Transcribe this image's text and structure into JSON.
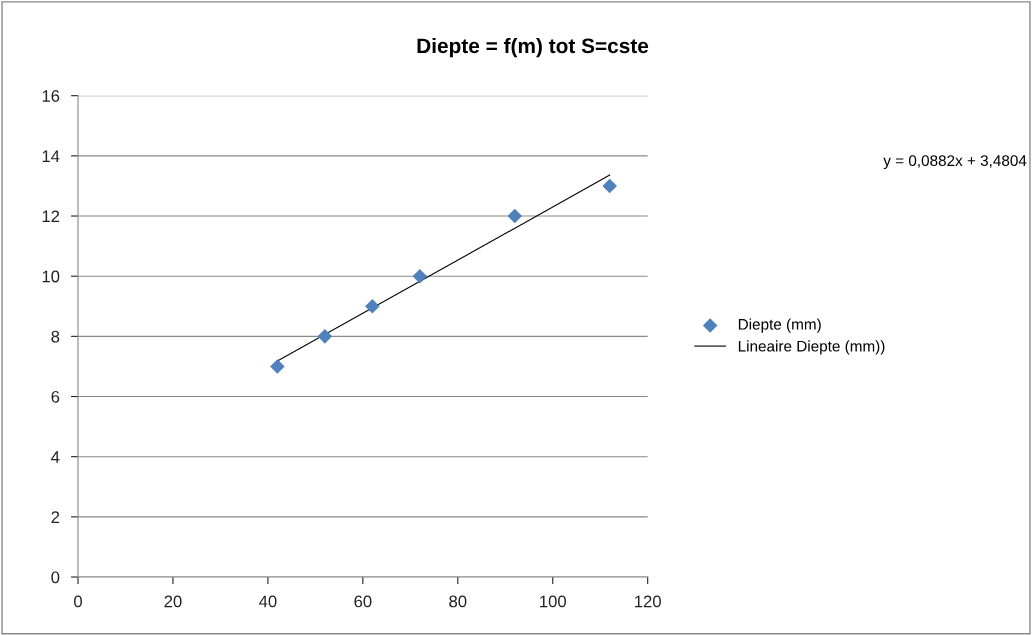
{
  "chart_data": {
    "type": "scatter",
    "title": "Diepte = f(m) tot S=cste",
    "annotations": [
      "y = 0,0882x + 3,4804"
    ],
    "series": [
      {
        "name": "Diepte (mm)",
        "color": "#4f81bd",
        "marker": "diamond",
        "x": [
          42,
          52,
          62,
          72,
          92,
          112
        ],
        "values": [
          7,
          8,
          9,
          10,
          12,
          13
        ]
      },
      {
        "name": "Lineaire Diepte (mm))",
        "type": "line",
        "color": "#000000",
        "marker": "none",
        "x": [
          42,
          112
        ],
        "values": [
          7.18,
          13.36
        ]
      }
    ],
    "xlim": [
      0,
      120
    ],
    "xticks": [
      0,
      20,
      40,
      60,
      80,
      100,
      120
    ],
    "ylim": [
      0,
      16
    ],
    "yticks": [
      0,
      2,
      4,
      6,
      8,
      10,
      12,
      14,
      16
    ],
    "grid": "y",
    "legend": "right"
  }
}
